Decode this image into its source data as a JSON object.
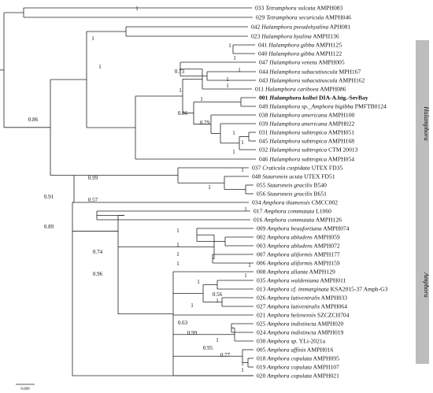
{
  "tree": {
    "taxa": [
      {
        "id": "033",
        "genus": "Tetramphora",
        "species": "sulcata",
        "strain": "AMPH083"
      },
      {
        "id": "029",
        "genus": "Tetramphora",
        "species": "securicula",
        "strain": "AMPH046"
      },
      {
        "id": "042",
        "genus": "Halamphora",
        "species": "pseudohyalina",
        "strain": "APH081"
      },
      {
        "id": "023",
        "genus": "Halamphora",
        "species": "hyalina",
        "strain": "AMPH136"
      },
      {
        "id": "041",
        "genus": "Halamphora",
        "species": "gibba",
        "strain": "AMPH125"
      },
      {
        "id": "040",
        "genus": "Halamphora",
        "species": "gibba",
        "strain": "AMPH122"
      },
      {
        "id": "047",
        "genus": "Halamphora",
        "species": "veneta",
        "strain": "AMPH005"
      },
      {
        "id": "044",
        "genus": "Halamphora",
        "species": "subacutiuscula",
        "strain": "MPH167"
      },
      {
        "id": "043",
        "genus": "Halamphora",
        "species": "subacutiuscula",
        "strain": "AMPH162"
      },
      {
        "id": "011",
        "genus": "Halamphora",
        "species": "cariboea",
        "strain": "AMPH086"
      },
      {
        "id": "001",
        "genus": "Halamphora",
        "species": "kolbei",
        "strain": "DIA-A.big.-SevBay",
        "bold": true
      },
      {
        "id": "049",
        "genus": "Halamphora",
        "species": "sp._",
        "species_extra": "Amphora bigibba",
        "strain": "PMFTB0124"
      },
      {
        "id": "038",
        "genus": "Halamphora",
        "species": "americana",
        "strain": "AMPH100"
      },
      {
        "id": "039",
        "genus": "Halamphora",
        "species": "americana",
        "strain": "AMPH022"
      },
      {
        "id": "031",
        "genus": "Halamphora",
        "species": "subtropica",
        "strain": "AMPH051"
      },
      {
        "id": "045",
        "genus": "Halamphora",
        "species": "subtropica",
        "strain": "AMPH168"
      },
      {
        "id": "032",
        "genus": "Halamphora",
        "species": "subtropica",
        "strain": "CTM 20013"
      },
      {
        "id": "046",
        "genus": "Halamphora",
        "species": "subtropica",
        "strain": "AMPH054"
      },
      {
        "id": "037",
        "genus": "Craticula",
        "species": "cuspidata",
        "strain": "UTEX FD35"
      },
      {
        "id": "048",
        "genus": "Stauroneis",
        "species": "acuta",
        "strain": "UTEX FD51"
      },
      {
        "id": "055",
        "genus": "Stauroneis",
        "species": "gracilis",
        "strain": "B540"
      },
      {
        "id": "056",
        "genus": "Stauroneis",
        "species": "gracilis",
        "strain": "B651"
      },
      {
        "id": "034",
        "genus": "Amphora",
        "species": "thumensis",
        "strain": "CMCC002"
      },
      {
        "id": "017",
        "genus": "Amphora",
        "species": "commutata",
        "strain": "L1060"
      },
      {
        "id": "016",
        "genus": "Amphora",
        "species": "commutata",
        "strain": "AMPH126"
      },
      {
        "id": "009",
        "genus": "Amphora",
        "species": "beaufortiana",
        "strain": "AMPH074"
      },
      {
        "id": "002",
        "genus": "Amphora",
        "species": "abludens",
        "strain": "AMPH059"
      },
      {
        "id": "003",
        "genus": "Amphora",
        "species": "abludens",
        "strain": "AMPH072"
      },
      {
        "id": "007",
        "genus": "Amphora",
        "species": "aliformis",
        "strain": "AMPH177"
      },
      {
        "id": "006",
        "genus": "Amphora",
        "species": "aliformis",
        "strain": "AMPH159"
      },
      {
        "id": "008",
        "genus": "Amphora",
        "species": "allanta",
        "strain": "AMPH129"
      },
      {
        "id": "035",
        "genus": "Amphora",
        "species": "waldeniana",
        "strain": "AMPH011"
      },
      {
        "id": "013",
        "genus": "Amphora",
        "species": "cf. immarginata",
        "strain": "KSA2015-37 Amph-G3"
      },
      {
        "id": "026",
        "genus": "Amphora",
        "species": "lativentralis",
        "strain": "AMPH033"
      },
      {
        "id": "027",
        "genus": "Amphora",
        "species": "lativentralis",
        "strain": "AMPH064"
      },
      {
        "id": "021",
        "genus": "Amphora",
        "species": "helenensis",
        "strain": "SZCZCH704"
      },
      {
        "id": "025",
        "genus": "Amphora",
        "species": "indistincta",
        "strain": "AMPH020"
      },
      {
        "id": "024",
        "genus": "Amphora",
        "species": "indistincta",
        "strain": "AMPH019"
      },
      {
        "id": "030",
        "genus": "Amphora",
        "species": "sp.",
        "strain": "YLi-2021a"
      },
      {
        "id": "005",
        "genus": "Amphora",
        "species": "affinis",
        "strain": "AMPH016"
      },
      {
        "id": "018",
        "genus": "Amphora",
        "species": "copulata",
        "strain": "AMPH095"
      },
      {
        "id": "019",
        "genus": "Amphora",
        "species": "copulata",
        "strain": "AMPH107"
      },
      {
        "id": "020",
        "genus": "Amphora",
        "species": "copulata",
        "strain": "AMPH021"
      }
    ],
    "support_values": [
      "1",
      "1",
      "1",
      "1",
      "1",
      "1",
      "0.73",
      "1",
      "1",
      "1",
      "1",
      "0.86",
      "0.79",
      "1",
      "1",
      "1",
      "0.86",
      "1",
      "0.99",
      "1",
      "0.91",
      "0.57",
      "1",
      "0.89",
      "1",
      "1",
      "1",
      "1",
      "0.74",
      "1",
      "1",
      "1",
      "0.56",
      "1",
      "0.96",
      "1",
      "0.63",
      "0.99",
      "1",
      "0.95",
      "0.77",
      "1",
      "1"
    ],
    "clades": [
      {
        "name": "Halamphora"
      },
      {
        "name": "Amphora"
      }
    ],
    "scale_bar": {
      "label": "0.009"
    }
  }
}
